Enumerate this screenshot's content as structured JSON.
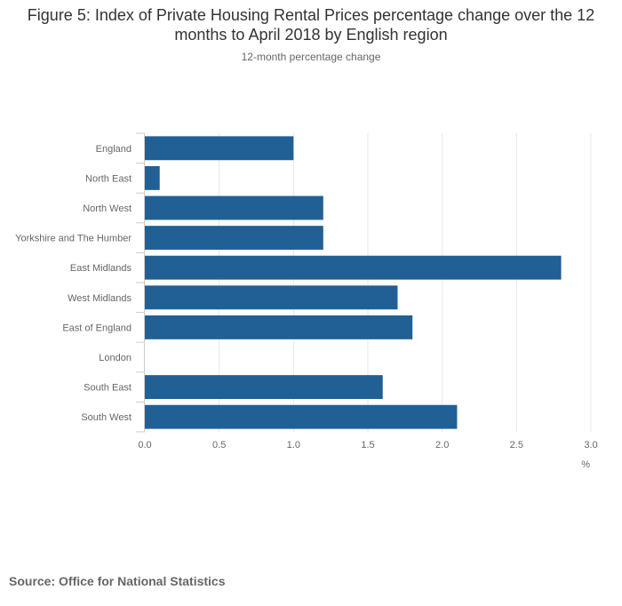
{
  "chart_data": {
    "type": "bar",
    "orientation": "horizontal",
    "title": "Figure 5: Index of Private Housing Rental Prices percentage change over the 12 months to April 2018 by English region",
    "subtitle": "12-month percentage change",
    "categories": [
      "England",
      "North East",
      "North West",
      "Yorkshire and The Humber",
      "East Midlands",
      "West Midlands",
      "East of England",
      "London",
      "South East",
      "South West"
    ],
    "values": [
      1.0,
      0.1,
      1.2,
      1.2,
      2.8,
      1.7,
      1.8,
      0.0,
      1.6,
      2.1
    ],
    "xlim": [
      0,
      3.0
    ],
    "xticks": [
      "0.0",
      "0.5",
      "1.0",
      "1.5",
      "2.0",
      "2.5",
      "3.0"
    ],
    "xlabel": "%",
    "ylabel": "",
    "grid": true,
    "bar_color": "#206095",
    "grid_color": "#e6e6e6"
  },
  "source": "Source: Office for National Statistics"
}
